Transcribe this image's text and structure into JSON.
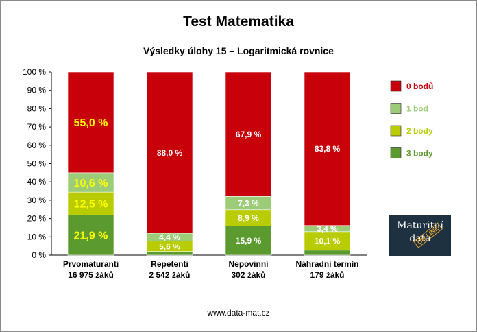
{
  "title": "Test Matematika",
  "footer": "www.data-mat.cz",
  "logo": {
    "line1": "Maturitní",
    "line2": "data",
    "stamp": "ON-LINE"
  },
  "colors": {
    "3 body": "#5b9a2e",
    "2 body": "#b8cc00",
    "1 bod": "#9ccc78",
    "0 bodů": "#c8000a"
  },
  "chart_data": {
    "type": "bar",
    "stacked": true,
    "title": "Test Matematika",
    "subtitle": "Výsledky úlohy 15 – Logaritmická rovnice",
    "categories": [
      {
        "name": "Prvomaturanti",
        "count": "16 975 žáků"
      },
      {
        "name": "Repetenti",
        "count": "2 542 žáků"
      },
      {
        "name": "Nepovinní",
        "count": "302 žáků"
      },
      {
        "name": "Náhradní termín",
        "count": "179 žáků"
      }
    ],
    "series": [
      {
        "name": "3 body",
        "values": [
          21.9,
          2.0,
          15.9,
          2.7
        ],
        "labels": [
          "21,9 %",
          "",
          "15,9 %",
          ""
        ]
      },
      {
        "name": "2 body",
        "values": [
          12.5,
          5.6,
          8.9,
          10.1
        ],
        "labels": [
          "12,5 %",
          "5,6 %",
          "8,9 %",
          "10,1 %"
        ]
      },
      {
        "name": "1 bod",
        "values": [
          10.6,
          4.4,
          7.3,
          3.4
        ],
        "labels": [
          "10,6 %",
          "4,4 %",
          "7,3 %",
          "3,4 %"
        ]
      },
      {
        "name": "0 bodů",
        "values": [
          55.0,
          88.0,
          67.9,
          83.8
        ],
        "labels": [
          "55,0 %",
          "88,0 %",
          "67,9 %",
          "83,8 %"
        ]
      }
    ],
    "ylim": [
      0,
      100
    ],
    "yticks": [
      "0 %",
      "10 %",
      "20 %",
      "30 %",
      "40 %",
      "50 %",
      "60 %",
      "70 %",
      "80 %",
      "90 %",
      "100 %"
    ],
    "legend": {
      "position": "right",
      "entries": [
        "0 bodů",
        "1 bod",
        "2 body",
        "3 body"
      ]
    },
    "grid": false
  }
}
